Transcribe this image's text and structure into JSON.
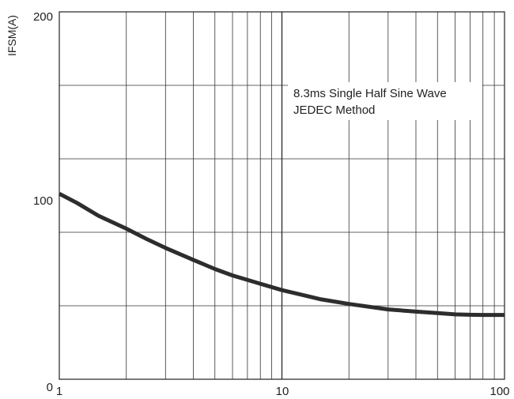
{
  "chart_data": {
    "type": "line",
    "xscale": "log",
    "xlim": [
      1,
      100
    ],
    "ylim": [
      0,
      200
    ],
    "xlabel": "",
    "ylabel": "IFSM(A)",
    "x_ticks": [
      "1",
      "10",
      "100"
    ],
    "y_ticks": [
      "0",
      "100",
      "200"
    ],
    "grid": true,
    "y_minor_lines": [
      40,
      80,
      120,
      160
    ],
    "annotations": [
      "8.3ms Single Half Sine Wave",
      "JEDEC Method"
    ],
    "series": [
      {
        "x": [
          1,
          1.2,
          1.5,
          2,
          2.5,
          3,
          4,
          5,
          6,
          8,
          10,
          15,
          20,
          30,
          40,
          50,
          60,
          70,
          80,
          90,
          100
        ],
        "y": [
          101,
          96,
          89,
          82,
          76,
          71.5,
          65,
          60,
          56.5,
          52,
          48.5,
          43.5,
          41,
          38,
          36.8,
          36,
          35.3,
          35.1,
          35,
          35,
          35
        ]
      }
    ],
    "colors": {
      "line": "#2d2d2d",
      "grid": "#333333",
      "frame": "#222222"
    }
  }
}
